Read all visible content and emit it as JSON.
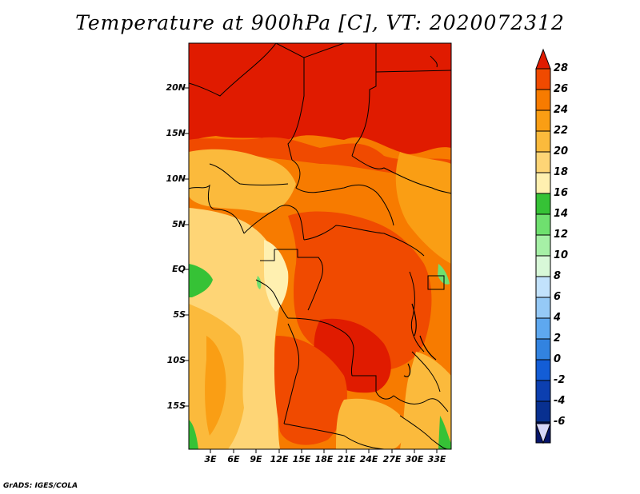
{
  "title": "Temperature at 900hPa [C], VT: 2020072312",
  "footer": "GrADS: IGES/COLA",
  "map": {
    "lat_ticks": [
      "20N",
      "15N",
      "10N",
      "5N",
      "EQ",
      "5S",
      "10S",
      "15S"
    ],
    "lon_ticks": [
      "3E",
      "6E",
      "9E",
      "12E",
      "15E",
      "18E",
      "21E",
      "24E",
      "27E",
      "30E",
      "33E"
    ]
  },
  "colorbar": {
    "labels": [
      "28",
      "26",
      "24",
      "22",
      "20",
      "18",
      "16",
      "14",
      "12",
      "10",
      "8",
      "6",
      "4",
      "2",
      "0",
      "-2",
      "-4",
      "-6"
    ],
    "colors": [
      "#e01b00",
      "#f04a00",
      "#f77b00",
      "#fa9e14",
      "#fbba3c",
      "#fed576",
      "#fff0b0",
      "#36c236",
      "#6fe06f",
      "#a6f0a6",
      "#d8f8d8",
      "#c2e2fc",
      "#95c9f6",
      "#5ea8ef",
      "#3283e0",
      "#135dd6",
      "#0c3fb0",
      "#083090",
      "#06146a",
      "#d6d6f8"
    ]
  },
  "chart_data": {
    "type": "heatmap",
    "variable": "Temperature at 900hPa",
    "units": "C",
    "valid_time": "2020072312",
    "lat_ticks": [
      "20N",
      "15N",
      "10N",
      "5N",
      "EQ",
      "5S",
      "10S",
      "15S"
    ],
    "lon_ticks": [
      "3E",
      "6E",
      "9E",
      "12E",
      "15E",
      "18E",
      "21E",
      "24E",
      "27E",
      "30E",
      "33E"
    ],
    "color_levels": [
      28,
      26,
      24,
      22,
      20,
      18,
      16,
      14,
      12,
      10,
      8,
      6,
      4,
      2,
      0,
      -2,
      -4,
      -6
    ]
  }
}
